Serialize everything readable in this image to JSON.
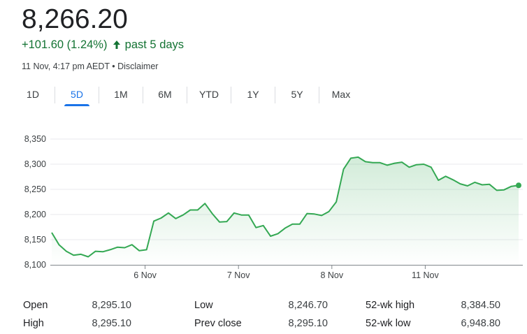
{
  "quote": {
    "price": "8,266.20",
    "change": "+101.60 (1.24%)",
    "change_period": "past 5 days",
    "timestamp": "11 Nov, 4:17 pm AEDT",
    "separator": " • ",
    "disclaimer": "Disclaimer",
    "positive_color": "#137333"
  },
  "range_tabs": {
    "items": [
      "1D",
      "5D",
      "1M",
      "6M",
      "YTD",
      "1Y",
      "5Y",
      "Max"
    ],
    "selected": "5D",
    "accent_color": "#1a73e8"
  },
  "chart_data": {
    "type": "line",
    "title": "",
    "xlabel": "",
    "ylabel": "",
    "ylim": [
      8100,
      8350
    ],
    "y_ticks": [
      "8,100",
      "8,150",
      "8,200",
      "8,250",
      "8,300",
      "8,350"
    ],
    "x_ticks": [
      "6 Nov",
      "7 Nov",
      "8 Nov",
      "11 Nov"
    ],
    "grid": true,
    "line_color": "#34a853",
    "series": [
      {
        "values": [
          8164,
          8140,
          8127,
          8119,
          8121,
          8116,
          8127,
          8126,
          8130,
          8135,
          8134,
          8140,
          8128,
          8130,
          8187,
          8193,
          8203,
          8192,
          8199,
          8209,
          8209,
          8222,
          8202,
          8185,
          8186,
          8203,
          8199,
          8199,
          8174,
          8178,
          8157,
          8162,
          8173,
          8181,
          8181,
          8202,
          8201,
          8198,
          8206,
          8225,
          8290,
          8312,
          8314,
          8305,
          8303,
          8303,
          8298,
          8302,
          8304,
          8294,
          8299,
          8300,
          8294,
          8268,
          8276,
          8269,
          8261,
          8257,
          8264,
          8259,
          8260,
          8248,
          8249,
          8256,
          8258
        ]
      }
    ]
  },
  "stats": {
    "rows": [
      [
        {
          "label": "Open",
          "value": "8,295.10"
        },
        {
          "label": "Low",
          "value": "8,246.70"
        },
        {
          "label": "52-wk high",
          "value": "8,384.50"
        }
      ],
      [
        {
          "label": "High",
          "value": "8,295.10"
        },
        {
          "label": "Prev close",
          "value": "8,295.10"
        },
        {
          "label": "52-wk low",
          "value": "6,948.80"
        }
      ]
    ]
  }
}
